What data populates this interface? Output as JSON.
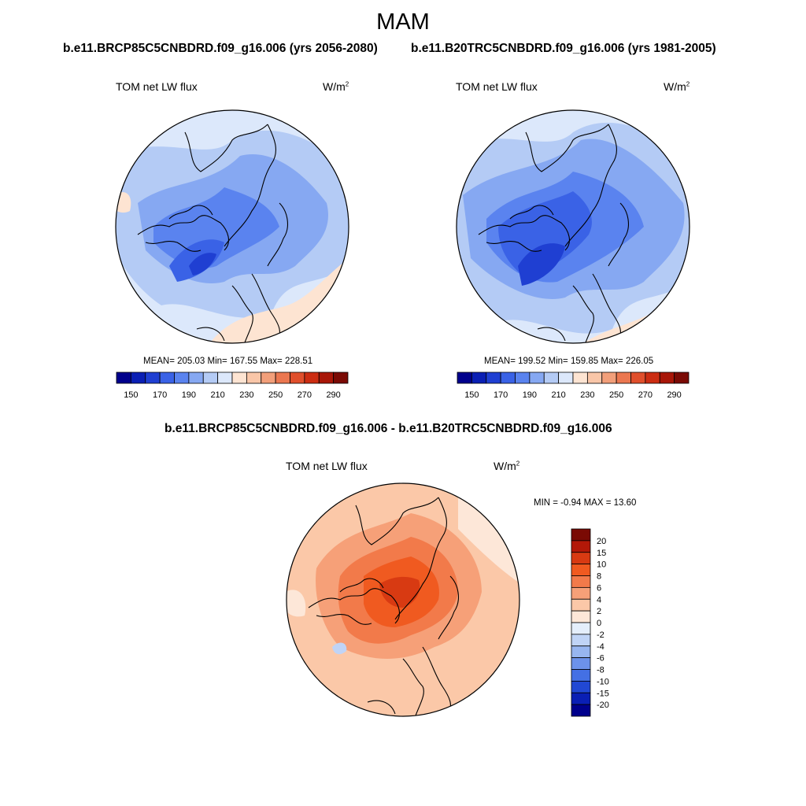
{
  "season": "MAM",
  "test_case": "b.e11.BRCP85C5CNBDRD.f09_g16.006 (yrs 2056-2080)",
  "control_case": "b.e11.B20TRC5CNBDRD.f09_g16.006 (yrs 1981-2005)",
  "diff_title": "b.e11.BRCP85C5CNBDRD.f09_g16.006 - b.e11.B20TRC5CNBDRD.f09_g16.006",
  "variable": "TOM net LW flux",
  "units_base": "W/m",
  "units_exp": "2",
  "panels": {
    "test": {
      "stats": "MEAN= 205.03  Min= 167.55  Max= 228.51"
    },
    "control": {
      "stats": "MEAN= 199.52  Min= 159.85  Max= 226.05"
    },
    "diff": {
      "stats": "MIN =  -0.94 MAX =  13.60"
    }
  },
  "abs_colorbar": {
    "levels": [
      "150",
      "170",
      "190",
      "210",
      "230",
      "250",
      "270",
      "290"
    ],
    "colors": [
      "#00008c",
      "#0a1fb4",
      "#1f3fd2",
      "#3a62e6",
      "#5a83ef",
      "#86a8f2",
      "#b4cbf5",
      "#dce8fb",
      "#fde4d2",
      "#f9c6a8",
      "#f29f7a",
      "#eb7750",
      "#e04f2c",
      "#cc2d12",
      "#a81608",
      "#7a0a04"
    ]
  },
  "diff_colorbar": {
    "labels": [
      "20",
      "15",
      "10",
      "8",
      "6",
      "4",
      "2",
      "0",
      "-2",
      "-4",
      "-6",
      "-8",
      "-10",
      "-15",
      "-20"
    ],
    "colors": [
      "#7a0a04",
      "#b31808",
      "#d83a12",
      "#f05a20",
      "#f27a4a",
      "#f6a078",
      "#fbc8a8",
      "#fde7d8",
      "#e4eefb",
      "#c0d4f6",
      "#97b6f0",
      "#6c92ea",
      "#4470e4",
      "#2148d4",
      "#0a1fb4",
      "#00008c"
    ]
  }
}
